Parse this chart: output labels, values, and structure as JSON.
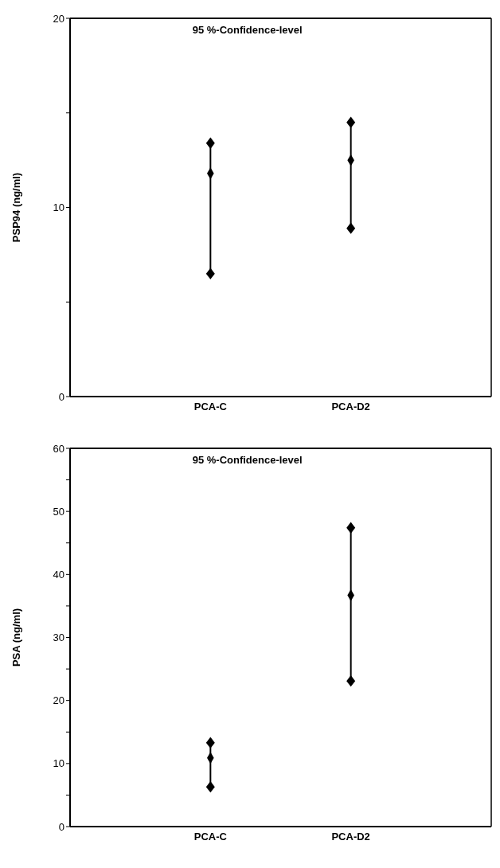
{
  "chart_data": [
    {
      "type": "scatter",
      "annotations": [
        "95 %-Confidence-level"
      ],
      "ylabel": "PSP94 (ng/ml)",
      "categories": [
        "PCA-C",
        "PCA-D2"
      ],
      "marker": "diamond",
      "series": [
        {
          "color": "#000000",
          "values": [
            11.8,
            12.5
          ],
          "errors": [
            [
              6.5,
              13.4
            ],
            [
              8.9,
              14.5
            ]
          ]
        }
      ],
      "ylim": [
        0,
        20
      ],
      "yticks": [
        0,
        {
          "value": 5,
          "label": null
        },
        10,
        {
          "value": 15,
          "label": null
        },
        20
      ]
    },
    {
      "type": "scatter",
      "annotations": [
        "95 %-Confidence-level"
      ],
      "ylabel": "PSA (ng/ml)",
      "categories": [
        "PCA-C",
        "PCA-D2"
      ],
      "marker": "diamond",
      "series": [
        {
          "color": "#000000",
          "values": [
            10.9,
            36.7
          ],
          "errors": [
            [
              6.3,
              13.3
            ],
            [
              23.1,
              47.4
            ]
          ]
        }
      ],
      "ylim": [
        0,
        60
      ],
      "yticks": [
        0,
        {
          "value": 5,
          "label": null
        },
        10,
        {
          "value": 15,
          "label": null
        },
        20,
        {
          "value": 25,
          "label": null
        },
        30,
        {
          "value": 35,
          "label": null
        },
        40,
        {
          "value": 45,
          "label": null
        },
        50,
        {
          "value": 55,
          "label": null
        },
        60
      ]
    }
  ]
}
